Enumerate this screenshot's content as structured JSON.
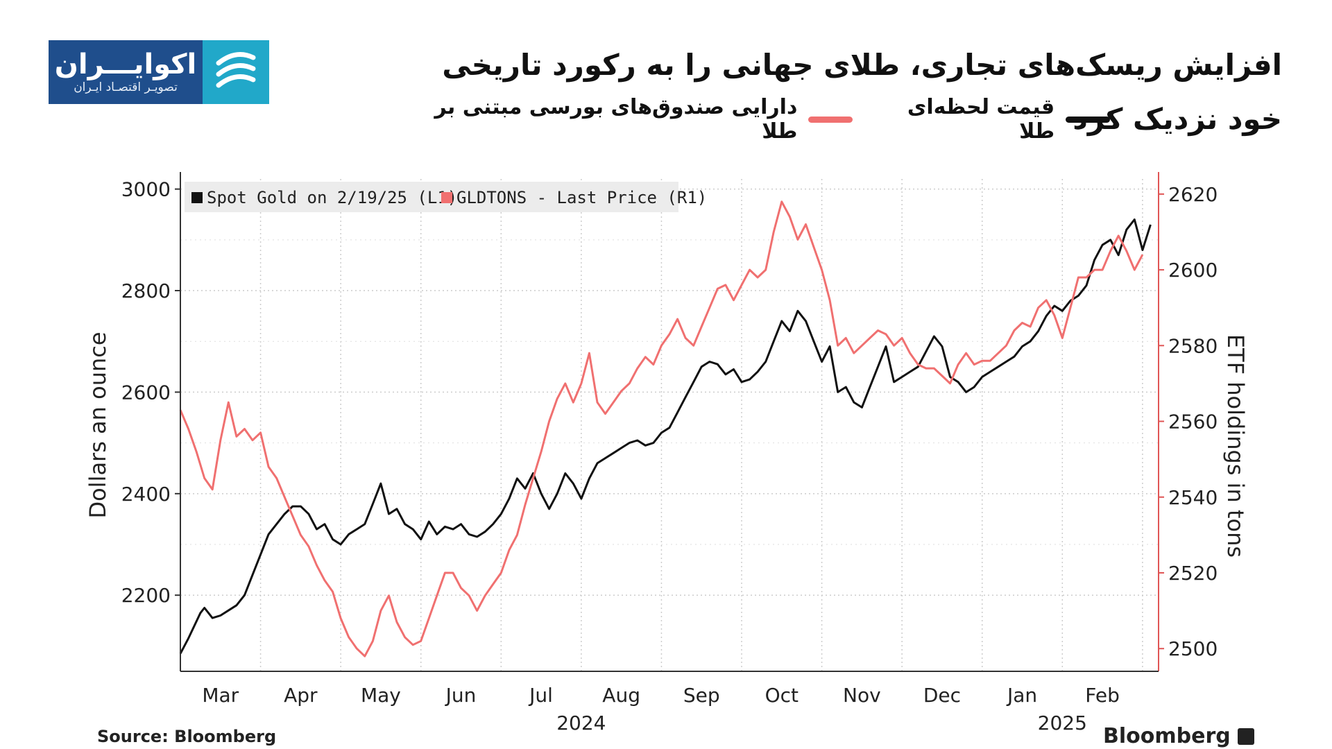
{
  "header": {
    "title": "افزایش ریسک‌های تجاری، طلای جهانی را به رکورد تاریخی خود نزدیک کرد"
  },
  "legend_fa": [
    {
      "label": "قیمت لحظه‌ای طلا",
      "color": "#111111"
    },
    {
      "label": "دارایی صندوق‌های بورسی مبتنی بر طلا",
      "color": "#f07070"
    }
  ],
  "logo": {
    "name": "اکوایـــران",
    "subtitle": "تصویـر اقتصـاد ایـران"
  },
  "footer": {
    "source": "Source: Bloomberg",
    "brand": "Bloomberg"
  },
  "colors": {
    "gold_line": "#111111",
    "etf_line": "#f07070",
    "right_axis": "#e05555",
    "grid": "#cccccc",
    "legend_bg": "#ececec"
  },
  "chart_data": {
    "type": "line",
    "ylabel_left": "Dollars an ounce",
    "ylabel_right": "ETF holdings in tons",
    "ylim_left": [
      2050,
      3020
    ],
    "ylim_right": [
      2494,
      2624
    ],
    "yticks_left": [
      2200,
      2400,
      2600,
      2800,
      3000
    ],
    "yticks_right": [
      2500,
      2520,
      2540,
      2560,
      2580,
      2600,
      2620
    ],
    "xlim": [
      0,
      12.2
    ],
    "months": [
      {
        "label": "Mar",
        "pos": 0.5
      },
      {
        "label": "Apr",
        "pos": 1.5
      },
      {
        "label": "May",
        "pos": 2.5
      },
      {
        "label": "Jun",
        "pos": 3.5
      },
      {
        "label": "Jul",
        "pos": 4.5
      },
      {
        "label": "Aug",
        "pos": 5.5
      },
      {
        "label": "Sep",
        "pos": 6.5
      },
      {
        "label": "Oct",
        "pos": 7.5
      },
      {
        "label": "Nov",
        "pos": 8.5
      },
      {
        "label": "Dec",
        "pos": 9.5
      },
      {
        "label": "Jan",
        "pos": 10.5
      },
      {
        "label": "Feb",
        "pos": 11.5
      }
    ],
    "years": [
      {
        "label": "2024",
        "pos": 5.0
      },
      {
        "label": "2025",
        "pos": 11.0
      }
    ],
    "legend": [
      {
        "label": "Spot Gold on 2/19/25 (L1)",
        "color": "#111111"
      },
      {
        "label": "GLDTONS - Last Price (R1)",
        "color": "#f07070"
      }
    ],
    "series": [
      {
        "name": "Spot Gold on 2/19/25 (L1)",
        "axis": "left",
        "color": "#111111",
        "x": [
          0,
          0.1,
          0.25,
          0.3,
          0.35,
          0.4,
          0.5,
          0.6,
          0.7,
          0.8,
          0.9,
          1.0,
          1.1,
          1.2,
          1.3,
          1.4,
          1.5,
          1.6,
          1.7,
          1.8,
          1.9,
          2.0,
          2.1,
          2.2,
          2.3,
          2.4,
          2.5,
          2.6,
          2.7,
          2.8,
          2.9,
          3.0,
          3.1,
          3.2,
          3.3,
          3.4,
          3.5,
          3.6,
          3.7,
          3.8,
          3.9,
          4.0,
          4.1,
          4.2,
          4.3,
          4.4,
          4.5,
          4.6,
          4.7,
          4.8,
          4.9,
          5.0,
          5.1,
          5.2,
          5.3,
          5.4,
          5.5,
          5.6,
          5.7,
          5.8,
          5.9,
          6.0,
          6.1,
          6.2,
          6.3,
          6.4,
          6.5,
          6.6,
          6.7,
          6.8,
          6.9,
          7.0,
          7.1,
          7.2,
          7.3,
          7.4,
          7.5,
          7.6,
          7.7,
          7.8,
          7.9,
          8.0,
          8.1,
          8.2,
          8.3,
          8.4,
          8.5,
          8.6,
          8.7,
          8.8,
          8.9,
          9.0,
          9.1,
          9.2,
          9.3,
          9.4,
          9.5,
          9.6,
          9.7,
          9.8,
          9.9,
          10.0,
          10.1,
          10.2,
          10.3,
          10.4,
          10.5,
          10.6,
          10.7,
          10.8,
          10.9,
          11.0,
          11.1,
          11.2,
          11.3,
          11.4,
          11.5,
          11.6,
          11.7,
          11.8,
          11.9,
          12.0,
          12.1
        ],
        "values": [
          2085,
          2115,
          2165,
          2175,
          2165,
          2155,
          2160,
          2170,
          2180,
          2200,
          2240,
          2280,
          2320,
          2340,
          2360,
          2375,
          2375,
          2360,
          2330,
          2340,
          2310,
          2300,
          2320,
          2330,
          2340,
          2380,
          2420,
          2360,
          2370,
          2340,
          2330,
          2310,
          2345,
          2320,
          2335,
          2330,
          2340,
          2320,
          2315,
          2325,
          2340,
          2360,
          2390,
          2430,
          2410,
          2440,
          2400,
          2370,
          2400,
          2440,
          2420,
          2390,
          2430,
          2460,
          2470,
          2480,
          2490,
          2500,
          2505,
          2495,
          2500,
          2520,
          2530,
          2560,
          2590,
          2620,
          2650,
          2660,
          2655,
          2635,
          2645,
          2620,
          2625,
          2640,
          2660,
          2700,
          2740,
          2720,
          2760,
          2740,
          2700,
          2660,
          2690,
          2600,
          2610,
          2580,
          2570,
          2610,
          2650,
          2690,
          2620,
          2630,
          2640,
          2650,
          2680,
          2710,
          2690,
          2630,
          2620,
          2600,
          2610,
          2630,
          2640,
          2650,
          2660,
          2670,
          2690,
          2700,
          2720,
          2750,
          2770,
          2760,
          2780,
          2790,
          2810,
          2860,
          2890,
          2900,
          2870,
          2920,
          2940,
          2880,
          2930
        ]
      },
      {
        "name": "GLDTONS - Last Price (R1)",
        "axis": "right",
        "color": "#f07070",
        "x": [
          0,
          0.1,
          0.2,
          0.3,
          0.4,
          0.5,
          0.6,
          0.7,
          0.8,
          0.9,
          1.0,
          1.1,
          1.2,
          1.3,
          1.4,
          1.5,
          1.6,
          1.7,
          1.8,
          1.9,
          2.0,
          2.1,
          2.2,
          2.3,
          2.4,
          2.5,
          2.6,
          2.7,
          2.8,
          2.9,
          3.0,
          3.1,
          3.2,
          3.3,
          3.4,
          3.5,
          3.6,
          3.7,
          3.8,
          3.9,
          4.0,
          4.1,
          4.2,
          4.3,
          4.4,
          4.5,
          4.6,
          4.7,
          4.8,
          4.9,
          5.0,
          5.1,
          5.2,
          5.3,
          5.4,
          5.5,
          5.6,
          5.7,
          5.8,
          5.9,
          6.0,
          6.1,
          6.2,
          6.3,
          6.4,
          6.5,
          6.6,
          6.7,
          6.8,
          6.9,
          7.0,
          7.1,
          7.2,
          7.3,
          7.4,
          7.5,
          7.6,
          7.7,
          7.8,
          7.9,
          8.0,
          8.1,
          8.2,
          8.3,
          8.4,
          8.5,
          8.6,
          8.7,
          8.8,
          8.9,
          9.0,
          9.1,
          9.2,
          9.3,
          9.4,
          9.5,
          9.6,
          9.7,
          9.8,
          9.9,
          10.0,
          10.1,
          10.2,
          10.3,
          10.4,
          10.5,
          10.6,
          10.7,
          10.8,
          10.9,
          11.0,
          11.1,
          11.2,
          11.3,
          11.4,
          11.5,
          11.6,
          11.7,
          11.8,
          11.9,
          12.0
        ],
        "values": [
          2563,
          2558,
          2552,
          2545,
          2542,
          2555,
          2565,
          2556,
          2558,
          2555,
          2557,
          2548,
          2545,
          2540,
          2535,
          2530,
          2527,
          2522,
          2518,
          2515,
          2508,
          2503,
          2500,
          2498,
          2502,
          2510,
          2514,
          2507,
          2503,
          2501,
          2502,
          2508,
          2514,
          2520,
          2520,
          2516,
          2514,
          2510,
          2514,
          2517,
          2520,
          2526,
          2530,
          2538,
          2545,
          2552,
          2560,
          2566,
          2570,
          2565,
          2570,
          2578,
          2565,
          2562,
          2565,
          2568,
          2570,
          2574,
          2577,
          2575,
          2580,
          2583,
          2587,
          2582,
          2580,
          2585,
          2590,
          2595,
          2596,
          2592,
          2596,
          2600,
          2598,
          2600,
          2610,
          2618,
          2614,
          2608,
          2612,
          2606,
          2600,
          2592,
          2580,
          2582,
          2578,
          2580,
          2582,
          2584,
          2583,
          2580,
          2582,
          2578,
          2575,
          2574,
          2574,
          2572,
          2570,
          2575,
          2578,
          2575,
          2576,
          2576,
          2578,
          2580,
          2584,
          2586,
          2585,
          2590,
          2592,
          2588,
          2582,
          2590,
          2598,
          2598,
          2600,
          2600,
          2605,
          2609,
          2605,
          2600,
          2604
        ]
      }
    ]
  }
}
